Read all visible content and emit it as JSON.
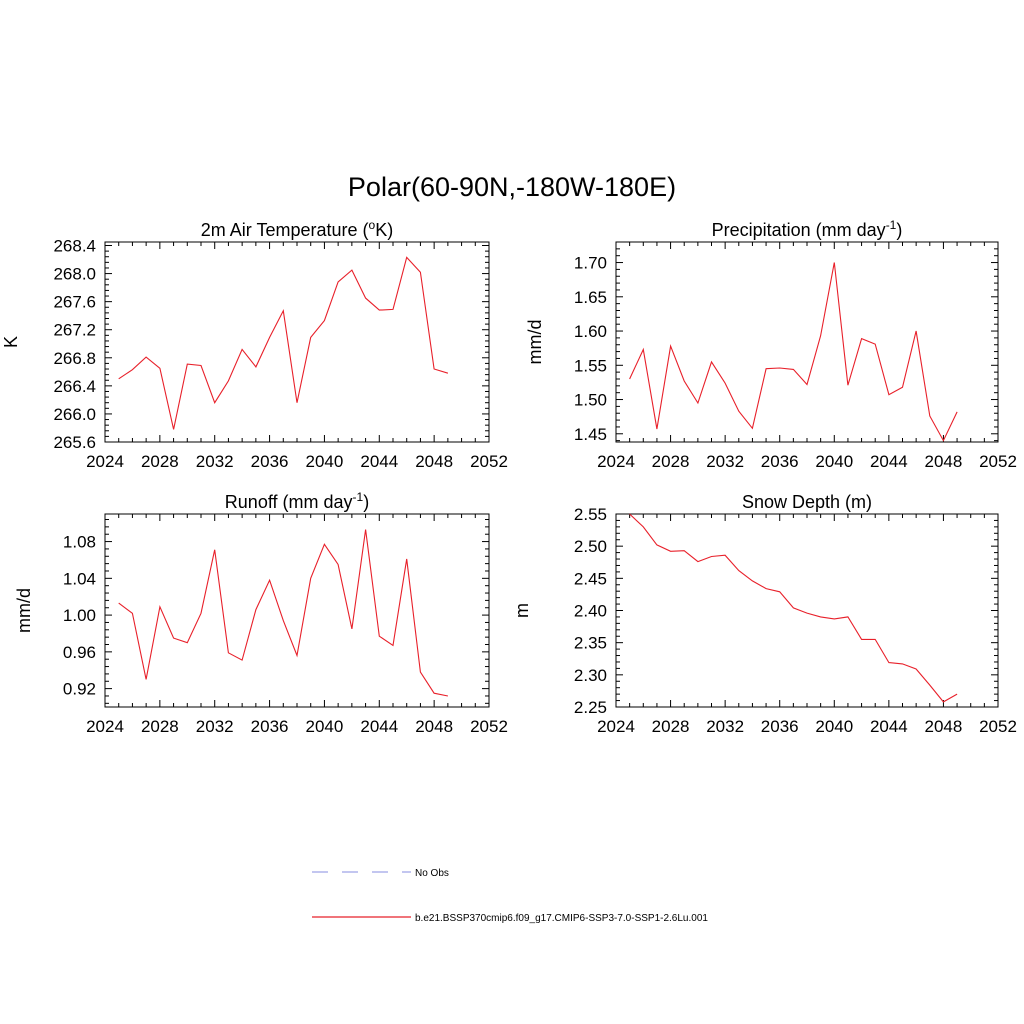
{
  "figure": {
    "title": "Polar(60-90N,-180W-180E)"
  },
  "legend": {
    "entries": [
      {
        "label": "No Obs",
        "color": "#9fa3e8",
        "style": "dashed"
      },
      {
        "label": "b.e21.BSSP370cmip6.f09_g17.CMIP6-SSP3-7.0-SSP1-2.6Lu.001",
        "color": "#e8202a",
        "style": "solid"
      }
    ]
  },
  "chart_data": [
    {
      "type": "line",
      "title": "2m Air Temperature (oK)",
      "title_main": "2m Air Temperature (",
      "title_sup": "o",
      "title_tail": "K)",
      "ylabel": "K",
      "xlim": [
        2024,
        2052
      ],
      "ylim": [
        265.6,
        268.45
      ],
      "xticks": [
        "2024",
        "2028",
        "2032",
        "2036",
        "2040",
        "2044",
        "2048",
        "2052"
      ],
      "yticks": [
        "265.6",
        "266.0",
        "266.4",
        "266.8",
        "267.2",
        "267.6",
        "268.0",
        "268.4"
      ],
      "series": [
        {
          "color": "#e8202a",
          "x": [
            2025,
            2026,
            2027,
            2028,
            2029,
            2030,
            2031,
            2032,
            2033,
            2034,
            2035,
            2036,
            2037,
            2038,
            2039,
            2040,
            2041,
            2042,
            2043,
            2044,
            2045,
            2046,
            2047,
            2048,
            2049
          ],
          "y": [
            266.5,
            266.63,
            266.81,
            266.65,
            265.78,
            266.71,
            266.69,
            266.16,
            266.47,
            266.92,
            266.67,
            267.09,
            267.47,
            266.16,
            267.09,
            267.33,
            267.88,
            268.05,
            267.65,
            267.48,
            267.49,
            268.23,
            268.02,
            266.64,
            266.58
          ]
        }
      ]
    },
    {
      "type": "line",
      "title": "Precipitation (mm day-1)",
      "title_main": "Precipitation (mm day",
      "title_sup": "-1",
      "title_tail": ")",
      "ylabel": "mm/d",
      "xlim": [
        2024,
        2052
      ],
      "ylim": [
        1.438,
        1.73
      ],
      "xticks": [
        "2024",
        "2028",
        "2032",
        "2036",
        "2040",
        "2044",
        "2048",
        "2052"
      ],
      "yticks": [
        "1.45",
        "1.50",
        "1.55",
        "1.60",
        "1.65",
        "1.70"
      ],
      "series": [
        {
          "color": "#e8202a",
          "x": [
            2025,
            2026,
            2027,
            2028,
            2029,
            2030,
            2031,
            2032,
            2033,
            2034,
            2035,
            2036,
            2037,
            2038,
            2039,
            2040,
            2041,
            2042,
            2043,
            2044,
            2045,
            2046,
            2047,
            2048,
            2049
          ],
          "y": [
            1.53,
            1.573,
            1.457,
            1.578,
            1.527,
            1.495,
            1.555,
            1.524,
            1.483,
            1.458,
            1.545,
            1.546,
            1.544,
            1.522,
            1.593,
            1.7,
            1.521,
            1.589,
            1.581,
            1.507,
            1.518,
            1.6,
            1.476,
            1.44,
            1.482
          ]
        }
      ]
    },
    {
      "type": "line",
      "title": "Runoff (mm day-1)",
      "title_main": "Runoff (mm day",
      "title_sup": "-1",
      "title_tail": ")",
      "ylabel": "mm/d",
      "xlim": [
        2024,
        2052
      ],
      "ylim": [
        0.9,
        1.11
      ],
      "xticks": [
        "2024",
        "2028",
        "2032",
        "2036",
        "2040",
        "2044",
        "2048",
        "2052"
      ],
      "yticks": [
        "0.92",
        "0.96",
        "1.00",
        "1.04",
        "1.08"
      ],
      "series": [
        {
          "color": "#e8202a",
          "x": [
            2025,
            2026,
            2027,
            2028,
            2029,
            2030,
            2031,
            2032,
            2033,
            2034,
            2035,
            2036,
            2037,
            2038,
            2039,
            2040,
            2041,
            2042,
            2043,
            2044,
            2045,
            2046,
            2047,
            2048,
            2049
          ],
          "y": [
            1.013,
            1.002,
            0.93,
            1.009,
            0.975,
            0.97,
            1.002,
            1.071,
            0.959,
            0.951,
            1.006,
            1.038,
            0.994,
            0.956,
            1.04,
            1.077,
            1.055,
            0.985,
            1.093,
            0.977,
            0.967,
            1.061,
            0.938,
            0.915,
            0.912
          ]
        }
      ]
    },
    {
      "type": "line",
      "title": "Snow Depth (m)",
      "title_main": "Snow Depth (m)",
      "title_sup": "",
      "title_tail": "",
      "ylabel": "m",
      "xlim": [
        2024,
        2052
      ],
      "ylim": [
        2.25,
        2.55
      ],
      "xticks": [
        "2024",
        "2028",
        "2032",
        "2036",
        "2040",
        "2044",
        "2048",
        "2052"
      ],
      "yticks": [
        "2.25",
        "2.30",
        "2.35",
        "2.40",
        "2.45",
        "2.50",
        "2.55"
      ],
      "series": [
        {
          "color": "#e8202a",
          "x": [
            2025,
            2026,
            2027,
            2028,
            2029,
            2030,
            2031,
            2032,
            2033,
            2034,
            2035,
            2036,
            2037,
            2038,
            2039,
            2040,
            2041,
            2042,
            2043,
            2044,
            2045,
            2046,
            2047,
            2048,
            2049
          ],
          "y": [
            2.55,
            2.53,
            2.502,
            2.492,
            2.493,
            2.476,
            2.484,
            2.486,
            2.462,
            2.446,
            2.434,
            2.429,
            2.404,
            2.396,
            2.39,
            2.387,
            2.39,
            2.355,
            2.355,
            2.319,
            2.317,
            2.309,
            2.284,
            2.258,
            2.27
          ]
        }
      ]
    }
  ]
}
